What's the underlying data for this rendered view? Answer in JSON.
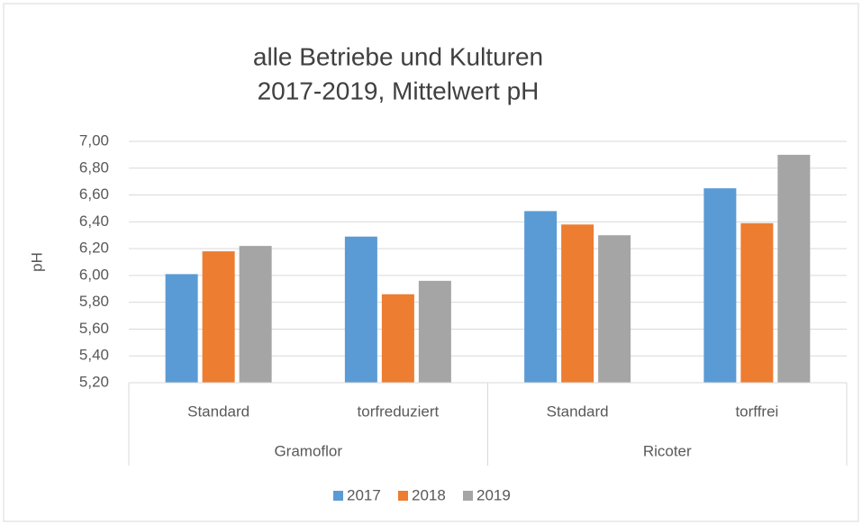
{
  "chart_data": {
    "type": "bar",
    "title": [
      "alle Betriebe und Kulturen",
      "2017-2019, Mittelwert pH"
    ],
    "y_label": "pH",
    "categories": [
      "Standard",
      "torfreduziert",
      "Standard",
      "torffrei"
    ],
    "groups": [
      {
        "name": "Gramoflor",
        "count": 2
      },
      {
        "name": "Ricoter",
        "count": 2
      }
    ],
    "series": [
      {
        "name": "2017",
        "color": "#5b9bd5",
        "values": [
          6.01,
          6.29,
          6.48,
          6.65
        ]
      },
      {
        "name": "2018",
        "color": "#ed7d31",
        "values": [
          6.18,
          5.86,
          6.38,
          6.39
        ]
      },
      {
        "name": "2019",
        "color": "#a5a5a5",
        "values": [
          6.22,
          5.96,
          6.3,
          6.9
        ]
      }
    ],
    "ylim": [
      5.2,
      7.0
    ],
    "yticks": [
      {
        "value": 5.2,
        "label": "5,20"
      },
      {
        "value": 5.4,
        "label": "5,40"
      },
      {
        "value": 5.6,
        "label": "5,60"
      },
      {
        "value": 5.8,
        "label": "5,80"
      },
      {
        "value": 6.0,
        "label": "6,00"
      },
      {
        "value": 6.2,
        "label": "6,20"
      },
      {
        "value": 6.4,
        "label": "6,40"
      },
      {
        "value": 6.6,
        "label": "6,60"
      },
      {
        "value": 6.8,
        "label": "6,80"
      },
      {
        "value": 7.0,
        "label": "7,00"
      }
    ],
    "grid": true,
    "legend": "bottom"
  }
}
